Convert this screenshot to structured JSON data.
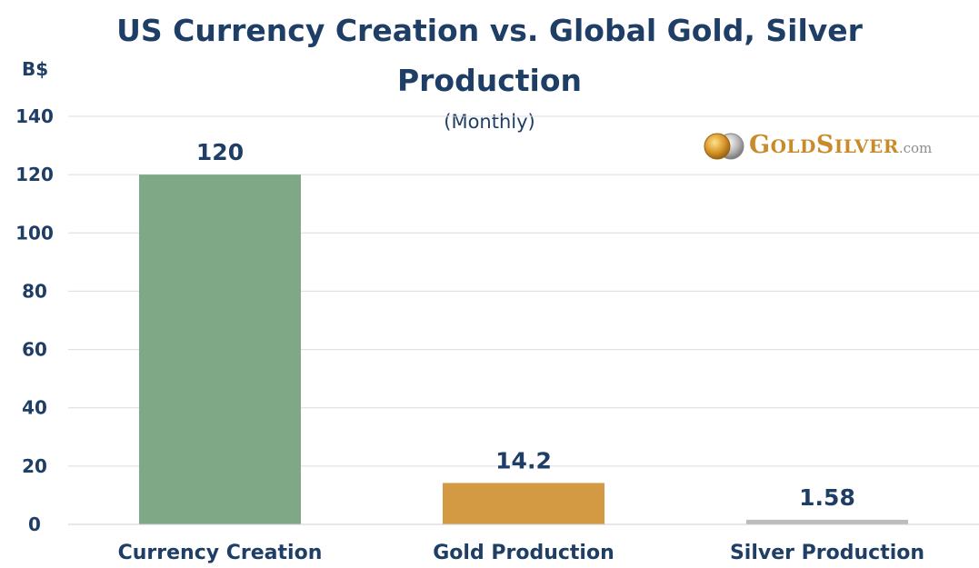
{
  "chart_data": {
    "type": "bar",
    "title_lines": [
      "US Currency Creation vs. Global Gold, Silver",
      "Production"
    ],
    "subtitle": "(Monthly)",
    "ylabel": "B$",
    "xlabel": "",
    "categories": [
      "Currency Creation",
      "Gold Production",
      "Silver Production"
    ],
    "values": [
      120,
      14.2,
      1.58
    ],
    "data_labels": [
      "120",
      "14.2",
      "1.58"
    ],
    "ylim": [
      0,
      140
    ],
    "yticks": [
      0,
      20,
      40,
      60,
      80,
      100,
      120,
      140
    ],
    "grid": true,
    "legend": "none",
    "bar_colors": [
      "#7ea886",
      "#d49a43",
      "#bdbdbd"
    ],
    "gridline_color": "#dcdcdc",
    "text_color": "#1f3e66"
  },
  "logo": {
    "icon": "gold-silver-coins-icon",
    "text_parts": [
      "G",
      "OLD",
      "S",
      "ILVER",
      ".com"
    ]
  }
}
